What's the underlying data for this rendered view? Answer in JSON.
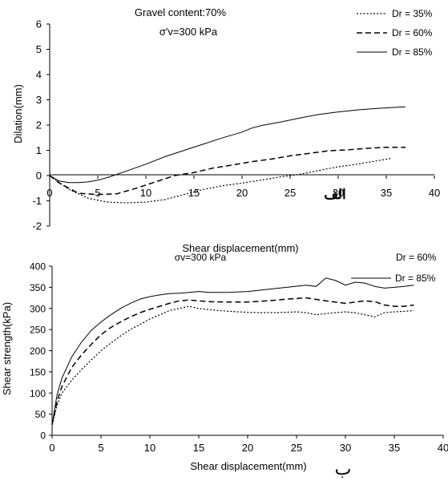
{
  "chart_data": [
    {
      "type": "line",
      "title": "Gravel content:70%",
      "subtitle": "σ′v=300 kPa",
      "xlabel": "Shear displacement(mm)",
      "ylabel": "Dilation(mm)",
      "xlim": [
        0,
        40
      ],
      "ylim": [
        -2,
        6
      ],
      "xticks": [
        0,
        5,
        10,
        15,
        20,
        25,
        30,
        35,
        40
      ],
      "yticks": [
        -2,
        -1,
        0,
        1,
        2,
        3,
        4,
        5,
        6
      ],
      "xtick_labels": [
        "0",
        "5",
        "10",
        "15",
        "20",
        "25",
        "30",
        "35",
        "40"
      ],
      "ytick_labels": [
        "-2",
        "-1",
        "0",
        "1",
        "2",
        "3",
        "4",
        "5",
        "6"
      ],
      "grid": false,
      "legend": "top-right",
      "annotation": "الف",
      "series": [
        {
          "name": "Dr = 35%",
          "style": "dotted",
          "x": [
            0,
            2,
            4,
            6,
            8,
            10,
            12,
            14,
            16,
            18,
            20,
            22,
            24,
            26,
            28,
            30,
            32,
            34,
            35.5
          ],
          "y": [
            0,
            -0.55,
            -0.9,
            -1.05,
            -1.08,
            -1.05,
            -0.95,
            -0.75,
            -0.55,
            -0.4,
            -0.3,
            -0.18,
            -0.05,
            0.05,
            0.2,
            0.35,
            0.45,
            0.58,
            0.68
          ]
        },
        {
          "name": "Dr = 60%",
          "style": "dashed",
          "x": [
            0,
            1,
            3,
            5,
            7,
            9,
            11,
            13,
            15,
            17,
            19,
            21,
            23,
            25,
            27,
            29,
            31,
            33,
            35,
            37
          ],
          "y": [
            0,
            -0.3,
            -0.7,
            -0.75,
            -0.72,
            -0.5,
            -0.25,
            0,
            0.12,
            0.3,
            0.42,
            0.55,
            0.65,
            0.78,
            0.88,
            0.98,
            1.02,
            1.08,
            1.12,
            1.12
          ]
        },
        {
          "name": "Dr = 85%",
          "style": "solid",
          "x": [
            0,
            1,
            2,
            3,
            4,
            5,
            6,
            8,
            10,
            12,
            14,
            16,
            18,
            20,
            21,
            22,
            24,
            26,
            28,
            30,
            32,
            34,
            36,
            37
          ],
          "y": [
            0,
            -0.22,
            -0.28,
            -0.28,
            -0.25,
            -0.18,
            -0.08,
            0.18,
            0.45,
            0.75,
            1.0,
            1.25,
            1.5,
            1.72,
            1.88,
            1.98,
            2.12,
            2.28,
            2.42,
            2.52,
            2.6,
            2.66,
            2.7,
            2.72
          ]
        }
      ]
    },
    {
      "type": "line",
      "title": "",
      "subtitle": "σv=300 kPa",
      "xlabel": "Shear displacement(mm)",
      "ylabel": "Shear strength(kPa)",
      "xlim": [
        0,
        40
      ],
      "ylim": [
        0,
        400
      ],
      "xticks": [
        0,
        5,
        10,
        15,
        20,
        25,
        30,
        35,
        40
      ],
      "yticks": [
        0,
        50,
        100,
        150,
        200,
        250,
        300,
        350,
        400
      ],
      "xtick_labels": [
        "0",
        "5",
        "10",
        "15",
        "20",
        "25",
        "30",
        "35",
        "40"
      ],
      "ytick_labels": [
        "0",
        "50",
        "100",
        "150",
        "200",
        "250",
        "300",
        "350",
        "400"
      ],
      "grid": false,
      "legend": "top-right",
      "annotation": "ب",
      "legend_partial_label": "Dr = 60%",
      "series": [
        {
          "name": "",
          "style": "dotted",
          "x": [
            0,
            0.5,
            1,
            2,
            3,
            4,
            5,
            6,
            7,
            8,
            9,
            10,
            11,
            12,
            13,
            14,
            15,
            17,
            19,
            21,
            23,
            25,
            26,
            27,
            28,
            29,
            30,
            31,
            32,
            33,
            34,
            35,
            36,
            37
          ],
          "y": [
            25,
            70,
            100,
            130,
            155,
            178,
            200,
            218,
            235,
            250,
            262,
            275,
            285,
            295,
            300,
            305,
            300,
            295,
            292,
            290,
            290,
            292,
            290,
            285,
            288,
            290,
            292,
            290,
            285,
            280,
            290,
            292,
            293,
            295
          ]
        },
        {
          "name": "",
          "style": "dashed",
          "x": [
            0,
            0.5,
            1,
            2,
            3,
            4,
            5,
            6,
            7,
            8,
            9,
            10,
            11,
            12,
            13,
            14,
            15,
            16,
            18,
            20,
            22,
            24,
            26,
            28,
            30,
            32,
            33,
            34,
            35,
            36,
            37
          ],
          "y": [
            25,
            80,
            115,
            160,
            190,
            215,
            238,
            255,
            268,
            280,
            290,
            298,
            305,
            312,
            318,
            320,
            318,
            316,
            315,
            315,
            318,
            322,
            325,
            318,
            312,
            318,
            316,
            308,
            305,
            305,
            308
          ]
        },
        {
          "name": "Dr = 85%",
          "style": "solid",
          "x": [
            0,
            0.5,
            1,
            2,
            3,
            4,
            5,
            6,
            7,
            8,
            9,
            10,
            11,
            12,
            13,
            14,
            15,
            16,
            18,
            20,
            22,
            24,
            26,
            27,
            28,
            29,
            30,
            31,
            32,
            33,
            34,
            35,
            36,
            37
          ],
          "y": [
            25,
            95,
            135,
            185,
            220,
            248,
            268,
            285,
            300,
            312,
            322,
            328,
            332,
            335,
            336,
            338,
            340,
            338,
            338,
            340,
            345,
            350,
            355,
            352,
            372,
            366,
            355,
            362,
            360,
            352,
            348,
            350,
            352,
            355
          ]
        }
      ]
    }
  ]
}
